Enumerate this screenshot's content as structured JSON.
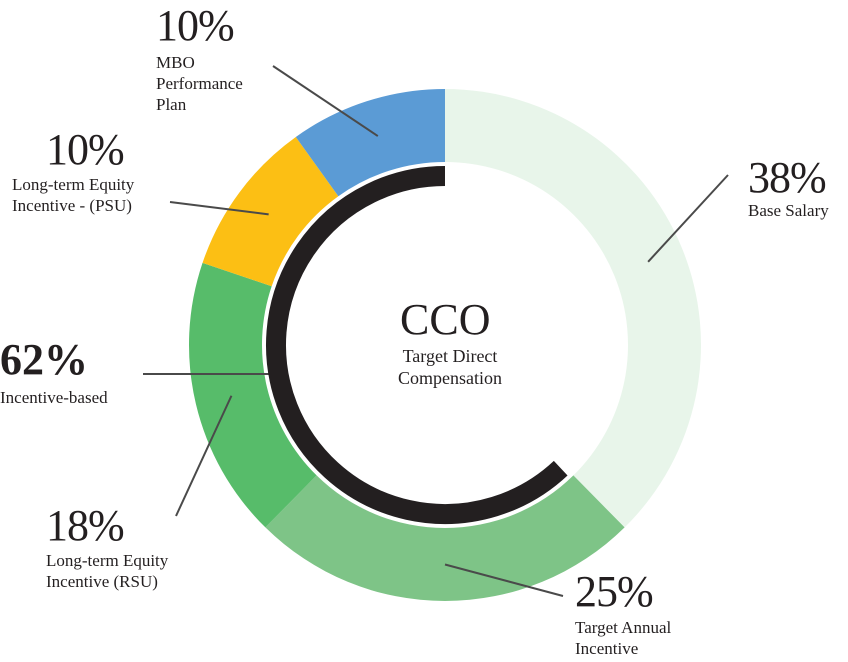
{
  "chart_data": {
    "type": "pie",
    "center_title": "CCO",
    "center_subtitle": "Target Direct\nCompensation",
    "slices": [
      {
        "key": "base_salary",
        "value": 38,
        "pct_label": "38%",
        "label": "Base Salary",
        "color": "#e8f5ea"
      },
      {
        "key": "target_annual_incentive",
        "value": 25,
        "pct_label": "25%",
        "label": "Target Annual\nIncentive",
        "color": "#7ec487"
      },
      {
        "key": "rsu",
        "value": 18,
        "pct_label": "18%",
        "label": "Long-term Equity\nIncentive (RSU)",
        "color": "#57bc6a"
      },
      {
        "key": "psu",
        "value": 10,
        "pct_label": "10%",
        "label": "Long-term Equity\nIncentive - (PSU)",
        "color": "#fcbf14"
      },
      {
        "key": "mbo",
        "value": 10,
        "pct_label": "10%",
        "label": "MBO\nPerformance\nPlan",
        "color": "#5b9bd5"
      }
    ],
    "inner_arc": {
      "value": 62,
      "pct_label": "62%",
      "label": "Incentive-based",
      "color": "#231f20"
    }
  }
}
